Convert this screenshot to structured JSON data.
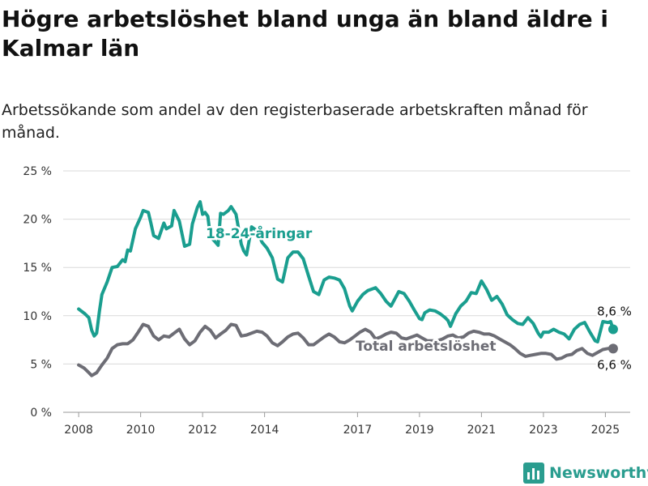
{
  "header": {
    "title": "Högre arbetslöshet bland unga än bland äldre i Kalmar län",
    "subtitle": "Arbetssökande som andel av den registerbaserade arbetskraften månad för månad."
  },
  "brand": {
    "name": "Newsworthy",
    "icon": "bar-chart-logo-icon",
    "color": "#2a9d8f"
  },
  "chart_data": {
    "type": "line",
    "title": "Högre arbetslöshet bland unga än bland äldre i Kalmar län",
    "subtitle": "Arbetssökande som andel av den registerbaserade arbetskraften månad för månad.",
    "xlabel": "",
    "ylabel": "",
    "ylim": [
      0,
      25
    ],
    "xlim": [
      2007.5,
      2025.8
    ],
    "y_ticks": [
      0,
      5,
      10,
      15,
      20,
      25
    ],
    "y_tick_labels": [
      "0 %",
      "5 %",
      "10 %",
      "15 %",
      "20 %",
      "25 %"
    ],
    "x_ticks": [
      2008,
      2010,
      2012,
      2014,
      2017,
      2019,
      2021,
      2023,
      2025
    ],
    "x_tick_labels": [
      "2008",
      "2010",
      "2012",
      "2014",
      "2017",
      "2019",
      "2021",
      "2023",
      "2025"
    ],
    "grid": true,
    "legend": "inline labels",
    "series": [
      {
        "name": "18-24-åringar",
        "color": "#1a9e8f",
        "end_label": "8,6 %",
        "points": [
          [
            2008.0,
            10.7
          ],
          [
            2008.2,
            10.2
          ],
          [
            2008.33,
            9.8
          ],
          [
            2008.42,
            8.5
          ],
          [
            2008.5,
            7.9
          ],
          [
            2008.58,
            8.2
          ],
          [
            2008.67,
            10.5
          ],
          [
            2008.75,
            12.2
          ],
          [
            2008.92,
            13.5
          ],
          [
            2009.08,
            15.0
          ],
          [
            2009.25,
            15.1
          ],
          [
            2009.42,
            15.8
          ],
          [
            2009.5,
            15.6
          ],
          [
            2009.58,
            16.8
          ],
          [
            2009.67,
            16.7
          ],
          [
            2009.83,
            19.0
          ],
          [
            2010.0,
            20.2
          ],
          [
            2010.08,
            20.9
          ],
          [
            2010.25,
            20.7
          ],
          [
            2010.33,
            19.6
          ],
          [
            2010.42,
            18.3
          ],
          [
            2010.58,
            18.0
          ],
          [
            2010.75,
            19.6
          ],
          [
            2010.83,
            19.0
          ],
          [
            2011.0,
            19.3
          ],
          [
            2011.08,
            20.9
          ],
          [
            2011.25,
            19.8
          ],
          [
            2011.42,
            17.2
          ],
          [
            2011.58,
            17.4
          ],
          [
            2011.67,
            19.5
          ],
          [
            2011.83,
            21.2
          ],
          [
            2011.92,
            21.8
          ],
          [
            2012.0,
            20.5
          ],
          [
            2012.08,
            20.7
          ],
          [
            2012.17,
            20.3
          ],
          [
            2012.25,
            18.2
          ],
          [
            2012.42,
            17.6
          ],
          [
            2012.5,
            17.3
          ],
          [
            2012.58,
            20.6
          ],
          [
            2012.67,
            20.5
          ],
          [
            2012.83,
            20.9
          ],
          [
            2012.92,
            21.3
          ],
          [
            2013.08,
            20.5
          ],
          [
            2013.25,
            17.4
          ],
          [
            2013.33,
            16.7
          ],
          [
            2013.42,
            16.3
          ],
          [
            2013.58,
            19.2
          ],
          [
            2013.75,
            18.8
          ],
          [
            2013.92,
            17.6
          ],
          [
            2014.08,
            17.0
          ],
          [
            2014.25,
            16.0
          ],
          [
            2014.42,
            13.8
          ],
          [
            2014.58,
            13.5
          ],
          [
            2014.75,
            16.0
          ],
          [
            2014.92,
            16.6
          ],
          [
            2015.08,
            16.6
          ],
          [
            2015.25,
            15.9
          ],
          [
            2015.42,
            14.1
          ],
          [
            2015.58,
            12.5
          ],
          [
            2015.75,
            12.2
          ],
          [
            2015.92,
            13.7
          ],
          [
            2016.08,
            14.0
          ],
          [
            2016.25,
            13.9
          ],
          [
            2016.42,
            13.7
          ],
          [
            2016.58,
            12.8
          ],
          [
            2016.75,
            11.0
          ],
          [
            2016.83,
            10.5
          ],
          [
            2017.0,
            11.5
          ],
          [
            2017.17,
            12.2
          ],
          [
            2017.33,
            12.6
          ],
          [
            2017.58,
            12.9
          ],
          [
            2017.75,
            12.3
          ],
          [
            2017.92,
            11.5
          ],
          [
            2018.08,
            11.0
          ],
          [
            2018.33,
            12.5
          ],
          [
            2018.5,
            12.3
          ],
          [
            2018.67,
            11.5
          ],
          [
            2018.83,
            10.6
          ],
          [
            2019.0,
            9.7
          ],
          [
            2019.08,
            9.6
          ],
          [
            2019.17,
            10.3
          ],
          [
            2019.33,
            10.6
          ],
          [
            2019.5,
            10.5
          ],
          [
            2019.67,
            10.2
          ],
          [
            2019.83,
            9.8
          ],
          [
            2019.92,
            9.5
          ],
          [
            2020.0,
            8.9
          ],
          [
            2020.17,
            10.2
          ],
          [
            2020.33,
            11.0
          ],
          [
            2020.5,
            11.5
          ],
          [
            2020.67,
            12.4
          ],
          [
            2020.83,
            12.3
          ],
          [
            2021.0,
            13.6
          ],
          [
            2021.17,
            12.7
          ],
          [
            2021.33,
            11.6
          ],
          [
            2021.5,
            12.0
          ],
          [
            2021.67,
            11.2
          ],
          [
            2021.83,
            10.1
          ],
          [
            2022.0,
            9.6
          ],
          [
            2022.17,
            9.2
          ],
          [
            2022.33,
            9.1
          ],
          [
            2022.5,
            9.8
          ],
          [
            2022.67,
            9.2
          ],
          [
            2022.83,
            8.2
          ],
          [
            2022.92,
            7.8
          ],
          [
            2023.0,
            8.3
          ],
          [
            2023.17,
            8.3
          ],
          [
            2023.33,
            8.6
          ],
          [
            2023.5,
            8.3
          ],
          [
            2023.67,
            8.1
          ],
          [
            2023.83,
            7.6
          ],
          [
            2024.0,
            8.6
          ],
          [
            2024.17,
            9.1
          ],
          [
            2024.33,
            9.3
          ],
          [
            2024.5,
            8.3
          ],
          [
            2024.67,
            7.4
          ],
          [
            2024.75,
            7.3
          ],
          [
            2024.92,
            9.4
          ],
          [
            2025.08,
            9.3
          ],
          [
            2025.17,
            9.4
          ],
          [
            2025.25,
            8.6
          ]
        ]
      },
      {
        "name": "Total arbetslöshet",
        "color": "#6d6d75",
        "end_label": "6,6 %",
        "points": [
          [
            2008.0,
            4.9
          ],
          [
            2008.17,
            4.6
          ],
          [
            2008.33,
            4.1
          ],
          [
            2008.42,
            3.8
          ],
          [
            2008.58,
            4.1
          ],
          [
            2008.75,
            4.9
          ],
          [
            2008.92,
            5.6
          ],
          [
            2009.08,
            6.6
          ],
          [
            2009.25,
            7.0
          ],
          [
            2009.42,
            7.1
          ],
          [
            2009.58,
            7.1
          ],
          [
            2009.75,
            7.5
          ],
          [
            2009.92,
            8.3
          ],
          [
            2010.08,
            9.1
          ],
          [
            2010.25,
            8.9
          ],
          [
            2010.42,
            7.9
          ],
          [
            2010.58,
            7.5
          ],
          [
            2010.75,
            7.9
          ],
          [
            2010.92,
            7.8
          ],
          [
            2011.08,
            8.2
          ],
          [
            2011.25,
            8.6
          ],
          [
            2011.42,
            7.6
          ],
          [
            2011.58,
            7.0
          ],
          [
            2011.75,
            7.4
          ],
          [
            2011.92,
            8.3
          ],
          [
            2012.08,
            8.9
          ],
          [
            2012.25,
            8.5
          ],
          [
            2012.42,
            7.7
          ],
          [
            2012.58,
            8.1
          ],
          [
            2012.75,
            8.5
          ],
          [
            2012.92,
            9.1
          ],
          [
            2013.08,
            9.0
          ],
          [
            2013.25,
            7.9
          ],
          [
            2013.42,
            8.0
          ],
          [
            2013.58,
            8.2
          ],
          [
            2013.75,
            8.4
          ],
          [
            2013.92,
            8.3
          ],
          [
            2014.08,
            7.9
          ],
          [
            2014.25,
            7.2
          ],
          [
            2014.42,
            6.9
          ],
          [
            2014.58,
            7.3
          ],
          [
            2014.75,
            7.8
          ],
          [
            2014.92,
            8.1
          ],
          [
            2015.08,
            8.2
          ],
          [
            2015.25,
            7.7
          ],
          [
            2015.42,
            7.0
          ],
          [
            2015.58,
            7.0
          ],
          [
            2015.75,
            7.4
          ],
          [
            2015.92,
            7.8
          ],
          [
            2016.08,
            8.1
          ],
          [
            2016.25,
            7.8
          ],
          [
            2016.42,
            7.3
          ],
          [
            2016.58,
            7.2
          ],
          [
            2016.75,
            7.5
          ],
          [
            2016.92,
            7.9
          ],
          [
            2017.08,
            8.3
          ],
          [
            2017.25,
            8.6
          ],
          [
            2017.42,
            8.3
          ],
          [
            2017.58,
            7.6
          ],
          [
            2017.75,
            7.8
          ],
          [
            2017.92,
            8.1
          ],
          [
            2018.08,
            8.3
          ],
          [
            2018.25,
            8.2
          ],
          [
            2018.42,
            7.7
          ],
          [
            2018.58,
            7.6
          ],
          [
            2018.75,
            7.8
          ],
          [
            2018.92,
            8.0
          ],
          [
            2019.08,
            7.7
          ],
          [
            2019.25,
            7.4
          ],
          [
            2019.42,
            7.4
          ],
          [
            2019.58,
            7.4
          ],
          [
            2019.75,
            7.6
          ],
          [
            2019.92,
            7.9
          ],
          [
            2020.08,
            8.0
          ],
          [
            2020.25,
            7.7
          ],
          [
            2020.42,
            7.8
          ],
          [
            2020.58,
            8.2
          ],
          [
            2020.75,
            8.4
          ],
          [
            2020.92,
            8.3
          ],
          [
            2021.08,
            8.1
          ],
          [
            2021.25,
            8.1
          ],
          [
            2021.42,
            7.9
          ],
          [
            2021.58,
            7.6
          ],
          [
            2021.75,
            7.3
          ],
          [
            2021.92,
            7.0
          ],
          [
            2022.08,
            6.6
          ],
          [
            2022.25,
            6.1
          ],
          [
            2022.42,
            5.8
          ],
          [
            2022.58,
            5.9
          ],
          [
            2022.75,
            6.0
          ],
          [
            2022.92,
            6.1
          ],
          [
            2023.08,
            6.1
          ],
          [
            2023.25,
            6.0
          ],
          [
            2023.42,
            5.5
          ],
          [
            2023.58,
            5.6
          ],
          [
            2023.75,
            5.9
          ],
          [
            2023.92,
            6.0
          ],
          [
            2024.08,
            6.4
          ],
          [
            2024.25,
            6.6
          ],
          [
            2024.42,
            6.1
          ],
          [
            2024.58,
            5.9
          ],
          [
            2024.75,
            6.2
          ],
          [
            2024.92,
            6.5
          ],
          [
            2025.08,
            6.6
          ],
          [
            2025.25,
            6.6
          ]
        ]
      }
    ]
  }
}
